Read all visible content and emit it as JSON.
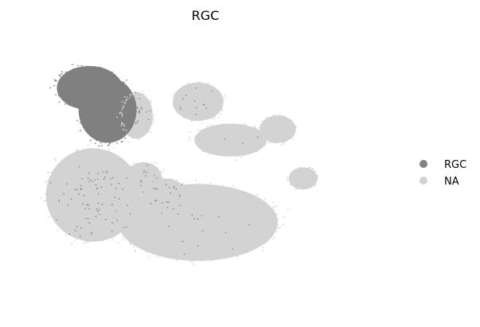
{
  "chart_data": {
    "type": "scatter",
    "title": "RGC",
    "xlabel": "",
    "ylabel": "",
    "axes_visible": false,
    "grid": false,
    "legend_placement": "right",
    "series": [
      {
        "name": "RGC",
        "color": "#808080"
      },
      {
        "name": "NA",
        "color": "#d3d3d3"
      }
    ],
    "clusters": [
      {
        "series": "NA",
        "cx": 0.3,
        "cy": 0.29,
        "rx": 0.045,
        "ry": 0.085,
        "rgc_fraction": 0.06
      },
      {
        "series": "NA",
        "cx": 0.47,
        "cy": 0.24,
        "rx": 0.07,
        "ry": 0.07,
        "rgc_fraction": 0.05
      },
      {
        "series": "NA",
        "cx": 0.32,
        "cy": 0.52,
        "rx": 0.05,
        "ry": 0.06,
        "rgc_fraction": 0.08
      },
      {
        "series": "NA",
        "cx": 0.56,
        "cy": 0.38,
        "rx": 0.1,
        "ry": 0.06,
        "rgc_fraction": 0.01
      },
      {
        "series": "NA",
        "cx": 0.69,
        "cy": 0.34,
        "rx": 0.05,
        "ry": 0.05,
        "rgc_fraction": 0.0
      },
      {
        "series": "NA",
        "cx": 0.76,
        "cy": 0.52,
        "rx": 0.04,
        "ry": 0.04,
        "rgc_fraction": 0.0
      },
      {
        "series": "NA",
        "cx": 0.18,
        "cy": 0.58,
        "rx": 0.13,
        "ry": 0.17,
        "rgc_fraction": 0.07
      },
      {
        "series": "NA",
        "cx": 0.47,
        "cy": 0.68,
        "rx": 0.22,
        "ry": 0.14,
        "rgc_fraction": 0.01
      },
      {
        "series": "NA",
        "cx": 0.38,
        "cy": 0.58,
        "rx": 0.06,
        "ry": 0.06,
        "rgc_fraction": 0.12
      },
      {
        "series": "RGC",
        "cx": 0.17,
        "cy": 0.19,
        "rx": 0.09,
        "ry": 0.08,
        "rgc_fraction": 1.0
      },
      {
        "series": "RGC",
        "cx": 0.22,
        "cy": 0.27,
        "rx": 0.08,
        "ry": 0.12,
        "rgc_fraction": 1.0
      }
    ]
  }
}
